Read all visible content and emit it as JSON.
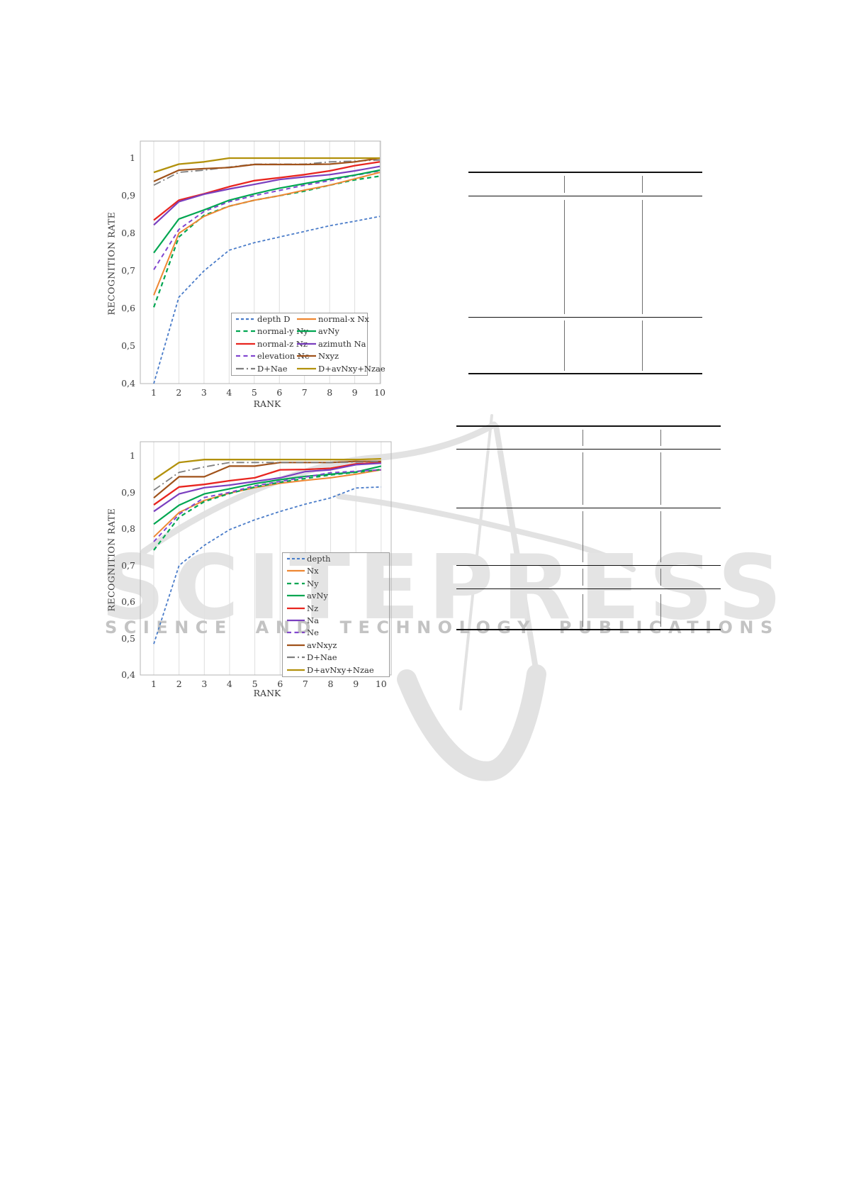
{
  "watermark": {
    "logo_text": "SCITEPRESS",
    "caption": "SCIENCE AND TECHNOLOGY PUBLICATIONS"
  },
  "charts": [
    {
      "chart_data": {
        "type": "line",
        "xlabel": "RANK",
        "ylabel": "RECOGNITION RATE",
        "x": [
          1,
          2,
          3,
          4,
          5,
          6,
          7,
          8,
          9,
          10
        ],
        "xtick_labels": [
          "1",
          "2",
          "3",
          "4",
          "5",
          "6",
          "7",
          "8",
          "9",
          "10"
        ],
        "yticks": [
          {
            "label": "1",
            "value": 1.0
          },
          {
            "label": "0,9",
            "value": 0.9
          },
          {
            "label": "0,8",
            "value": 0.8
          },
          {
            "label": "0,7",
            "value": 0.7
          },
          {
            "label": "0,6",
            "value": 0.6
          },
          {
            "label": "0,5",
            "value": 0.5
          },
          {
            "label": "0,4",
            "value": 0.4
          }
        ],
        "ylim": [
          0.4,
          1.045
        ],
        "grid": "vertical-only",
        "legend_position": "inside-bottom-right",
        "legend_columns": 2,
        "series": [
          {
            "name": "depth D",
            "color": "#4a7cc9",
            "dash": "4,3",
            "width": 1.8,
            "legend_col": 0,
            "legend_row": 0,
            "values": [
              0.4,
              0.63,
              0.7,
              0.755,
              0.775,
              0.79,
              0.805,
              0.82,
              0.832,
              0.845
            ]
          },
          {
            "name": "normal-y Ny",
            "color": "#00a651",
            "dash": "6,4.5",
            "width": 2.2,
            "legend_col": 0,
            "legend_row": 1,
            "values": [
              0.603,
              0.79,
              0.848,
              0.872,
              0.888,
              0.9,
              0.912,
              0.928,
              0.942,
              0.952
            ]
          },
          {
            "name": "normal-z Nz",
            "color": "#e8251f",
            "dash": "",
            "width": 2.3,
            "legend_col": 0,
            "legend_row": 2,
            "values": [
              0.835,
              0.888,
              0.905,
              0.924,
              0.94,
              0.948,
              0.956,
              0.966,
              0.98,
              0.99
            ]
          },
          {
            "name": "elevation Ne",
            "color": "#8247d0",
            "dash": "6,4.5",
            "width": 2.0,
            "legend_col": 0,
            "legend_row": 3,
            "values": [
              0.703,
              0.81,
              0.858,
              0.884,
              0.9,
              0.914,
              0.928,
              0.94,
              0.954,
              0.966
            ]
          },
          {
            "name": "D+Nae",
            "color": "#7f7f7f",
            "dash": "11,4,2,4",
            "width": 1.8,
            "legend_col": 0,
            "legend_row": 4,
            "values": [
              0.928,
              0.962,
              0.968,
              0.976,
              0.984,
              0.984,
              0.984,
              0.99,
              0.992,
              0.995
            ]
          },
          {
            "name": "normal-x Nx",
            "color": "#ee8733",
            "dash": "",
            "width": 2.0,
            "legend_col": 1,
            "legend_row": 0,
            "values": [
              0.635,
              0.8,
              0.845,
              0.872,
              0.888,
              0.9,
              0.915,
              0.928,
              0.945,
              0.962
            ]
          },
          {
            "name": "avNy",
            "color": "#00a651",
            "dash": "",
            "width": 2.2,
            "legend_col": 1,
            "legend_row": 1,
            "values": [
              0.748,
              0.838,
              0.862,
              0.888,
              0.905,
              0.92,
              0.932,
              0.944,
              0.955,
              0.968
            ]
          },
          {
            "name": "azimuth Na",
            "color": "#7a3fbf",
            "dash": "",
            "width": 2.2,
            "legend_col": 1,
            "legend_row": 2,
            "values": [
              0.822,
              0.884,
              0.904,
              0.918,
              0.93,
              0.943,
              0.95,
              0.956,
              0.966,
              0.978
            ]
          },
          {
            "name": "Nxyz",
            "color": "#a0521a",
            "dash": "",
            "width": 2.2,
            "legend_col": 1,
            "legend_row": 3,
            "values": [
              0.938,
              0.968,
              0.972,
              0.975,
              0.983,
              0.983,
              0.983,
              0.984,
              0.99,
              1.0
            ]
          },
          {
            "name": "D+avNxy+Nzae",
            "color": "#b2910c",
            "dash": "",
            "width": 2.3,
            "legend_col": 1,
            "legend_row": 4,
            "values": [
              0.962,
              0.984,
              0.99,
              1.0,
              1.0,
              1.0,
              1.0,
              1.0,
              1.0,
              1.0
            ]
          }
        ]
      }
    },
    {
      "chart_data": {
        "type": "line",
        "xlabel": "RANK",
        "ylabel": "RECOGNITION RATE",
        "x": [
          1,
          2,
          3,
          4,
          5,
          6,
          7,
          8,
          9,
          10
        ],
        "xtick_labels": [
          "1",
          "2",
          "3",
          "4",
          "5",
          "6",
          "7",
          "8",
          "9",
          "10"
        ],
        "yticks": [
          {
            "label": "1",
            "value": 1.0
          },
          {
            "label": "0,9",
            "value": 0.9
          },
          {
            "label": "0,8",
            "value": 0.8
          },
          {
            "label": "0,7",
            "value": 0.7
          },
          {
            "label": "0,6",
            "value": 0.6
          },
          {
            "label": "0,5",
            "value": 0.5
          },
          {
            "label": "0,4",
            "value": 0.4
          }
        ],
        "ylim": [
          0.4,
          1.04
        ],
        "grid": "vertical-only",
        "legend_position": "inside-bottom-right",
        "legend_columns": 1,
        "series": [
          {
            "name": "depth",
            "color": "#4a7cc9",
            "dash": "4,3",
            "width": 1.8,
            "legend_col": 0,
            "legend_row": 0,
            "values": [
              0.485,
              0.7,
              0.755,
              0.798,
              0.825,
              0.848,
              0.868,
              0.885,
              0.912,
              0.915
            ]
          },
          {
            "name": "Nx",
            "color": "#ee8733",
            "dash": "",
            "width": 2.0,
            "legend_col": 0,
            "legend_row": 1,
            "values": [
              0.778,
              0.845,
              0.878,
              0.898,
              0.913,
              0.925,
              0.933,
              0.94,
              0.95,
              0.962
            ]
          },
          {
            "name": "Ny",
            "color": "#00a651",
            "dash": "6,4.5",
            "width": 2.2,
            "legend_col": 0,
            "legend_row": 2,
            "values": [
              0.742,
              0.832,
              0.875,
              0.897,
              0.915,
              0.928,
              0.938,
              0.948,
              0.955,
              0.963
            ]
          },
          {
            "name": "avNy",
            "color": "#00a651",
            "dash": "",
            "width": 2.2,
            "legend_col": 0,
            "legend_row": 3,
            "values": [
              0.813,
              0.865,
              0.896,
              0.91,
              0.924,
              0.935,
              0.944,
              0.95,
              0.956,
              0.972
            ]
          },
          {
            "name": "Nz",
            "color": "#e8251f",
            "dash": "",
            "width": 2.3,
            "legend_col": 0,
            "legend_row": 4,
            "values": [
              0.866,
              0.915,
              0.922,
              0.932,
              0.94,
              0.962,
              0.963,
              0.966,
              0.978,
              0.982
            ]
          },
          {
            "name": "Na",
            "color": "#7a3fbf",
            "dash": "",
            "width": 2.2,
            "legend_col": 0,
            "legend_row": 5,
            "values": [
              0.848,
              0.896,
              0.913,
              0.92,
              0.93,
              0.94,
              0.957,
              0.962,
              0.976,
              0.98
            ]
          },
          {
            "name": "Ne",
            "color": "#8247d0",
            "dash": "6,4.5",
            "width": 2.0,
            "legend_col": 0,
            "legend_row": 6,
            "values": [
              0.765,
              0.84,
              0.886,
              0.9,
              0.918,
              0.93,
              0.942,
              0.954,
              0.958,
              0.962
            ]
          },
          {
            "name": "avNxyz",
            "color": "#a0521a",
            "dash": "",
            "width": 2.2,
            "legend_col": 0,
            "legend_row": 7,
            "values": [
              0.885,
              0.943,
              0.943,
              0.972,
              0.972,
              0.982,
              0.982,
              0.982,
              0.985,
              0.985
            ]
          },
          {
            "name": "D+Nae",
            "color": "#7f7f7f",
            "dash": "11,4,2,4",
            "width": 1.8,
            "legend_col": 0,
            "legend_row": 8,
            "values": [
              0.906,
              0.955,
              0.97,
              0.982,
              0.982,
              0.982,
              0.982,
              0.982,
              0.983,
              0.985
            ]
          },
          {
            "name": "D+avNxy+Nzae",
            "color": "#b2910c",
            "dash": "",
            "width": 2.3,
            "legend_col": 0,
            "legend_row": 9,
            "values": [
              0.935,
              0.982,
              0.99,
              0.99,
              0.99,
              0.99,
              0.99,
              0.99,
              0.99,
              0.992
            ]
          }
        ]
      }
    }
  ]
}
